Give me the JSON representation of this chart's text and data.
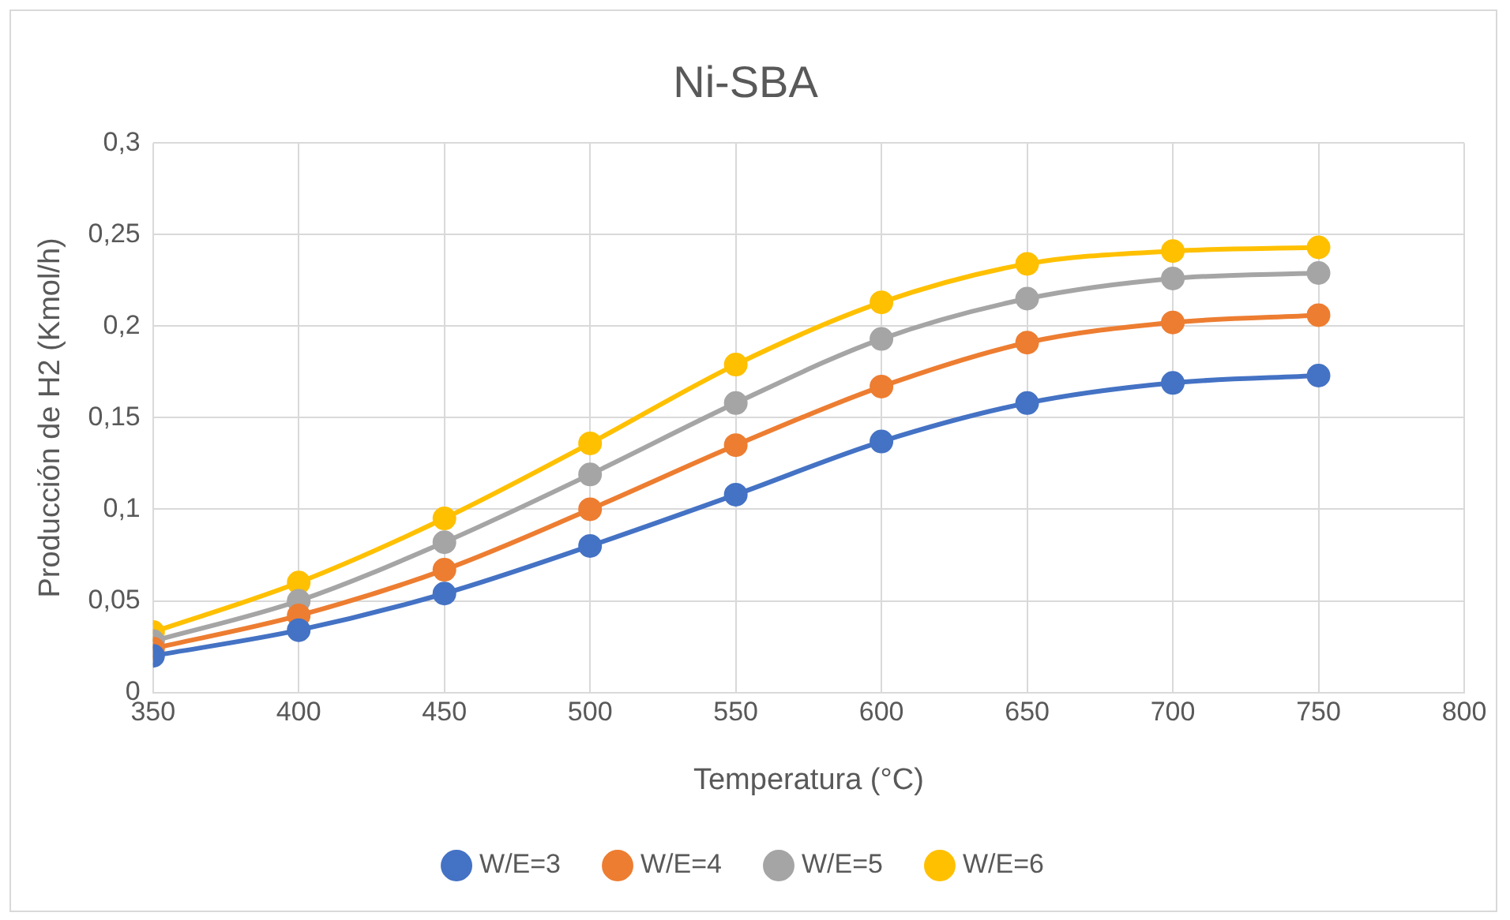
{
  "chart_data": {
    "type": "line",
    "title": "Ni-SBA",
    "xlabel": "Temperatura (°C)",
    "ylabel": "Producción de H2 (Kmol/h)",
    "x": [
      350,
      400,
      450,
      500,
      550,
      600,
      650,
      700,
      750
    ],
    "series": [
      {
        "name": "W/E=3",
        "color": "#4472c4",
        "values": [
          0.02,
          0.034,
          0.054,
          0.08,
          0.108,
          0.137,
          0.158,
          0.169,
          0.173
        ]
      },
      {
        "name": "W/E=4",
        "color": "#ed7d31",
        "values": [
          0.024,
          0.042,
          0.067,
          0.1,
          0.135,
          0.167,
          0.191,
          0.202,
          0.206
        ]
      },
      {
        "name": "W/E=5",
        "color": "#a5a5a5",
        "values": [
          0.028,
          0.05,
          0.082,
          0.119,
          0.158,
          0.193,
          0.215,
          0.226,
          0.229
        ]
      },
      {
        "name": "W/E=6",
        "color": "#ffc000",
        "values": [
          0.033,
          0.06,
          0.095,
          0.136,
          0.179,
          0.213,
          0.234,
          0.241,
          0.243
        ]
      }
    ],
    "xlim": [
      350,
      800
    ],
    "xticks": [
      350,
      400,
      450,
      500,
      550,
      600,
      650,
      700,
      750,
      800
    ],
    "ylim": [
      0,
      0.3
    ],
    "yticks": [
      0,
      {
        "value": 0.05,
        "label": "0,05"
      },
      {
        "value": 0.1,
        "label": "0,1"
      },
      {
        "value": 0.15,
        "label": "0,15"
      },
      {
        "value": 0.2,
        "label": "0,2"
      },
      {
        "value": 0.25,
        "label": "0,25"
      },
      {
        "value": 0.3,
        "label": "0,3"
      }
    ],
    "grid": true,
    "legend": "bottom",
    "marker": "circle",
    "line_style": "solid"
  }
}
